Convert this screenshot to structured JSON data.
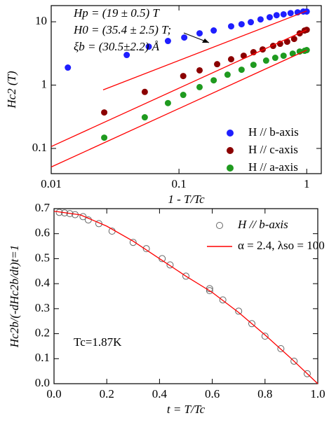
{
  "chart_data": [
    {
      "type": "scatter",
      "x_label": "1 - T/Tc",
      "y_label": "Hc2 (T)",
      "log_x": true,
      "log_y": true,
      "xlim": [
        0.01,
        1.3
      ],
      "ylim": [
        0.04,
        18
      ],
      "xticks": [
        0.01,
        0.1,
        1
      ],
      "yticks": [
        0.1,
        1,
        10
      ],
      "legend": "lower right",
      "annotations": [
        "Hp = (19 ± 0.5) T",
        "H0 = (35.4 ± 2.5) T;",
        "ξb = (30.5±2.2) Å"
      ],
      "series": [
        {
          "name": "H // b-axis",
          "color": "#1f1fff",
          "marker": "circle",
          "x": [
            0.0135,
            0.039,
            0.058,
            0.082,
            0.11,
            0.145,
            0.187,
            0.256,
            0.309,
            0.365,
            0.435,
            0.513,
            0.581,
            0.659,
            0.748,
            0.849,
            0.94,
            1.0
          ],
          "values": [
            1.89,
            2.99,
            4.05,
            4.97,
            5.64,
            6.57,
            7.28,
            8.47,
            9.15,
            9.86,
            10.9,
            11.8,
            12.7,
            13.1,
            13.7,
            14.1,
            14.5,
            14.5
          ]
        },
        {
          "name": "H // c-axis",
          "color": "#8b0000",
          "marker": "circle",
          "x": [
            0.026,
            0.054,
            0.108,
            0.145,
            0.199,
            0.256,
            0.321,
            0.383,
            0.452,
            0.546,
            0.619,
            0.703,
            0.797,
            0.881,
            0.963,
            1.0
          ],
          "values": [
            0.37,
            0.78,
            1.39,
            1.71,
            2.14,
            2.56,
            2.91,
            3.31,
            3.66,
            4.16,
            4.49,
            4.84,
            5.36,
            6.57,
            7.27,
            7.46
          ]
        },
        {
          "name": "H // a-axis",
          "color": "#1f9a1f",
          "marker": "circle",
          "x": [
            0.026,
            0.054,
            0.082,
            0.108,
            0.145,
            0.187,
            0.24,
            0.309,
            0.383,
            0.481,
            0.567,
            0.659,
            0.777,
            0.881,
            0.963,
            1.0
          ],
          "values": [
            0.148,
            0.31,
            0.52,
            0.7,
            0.93,
            1.19,
            1.46,
            1.75,
            2.09,
            2.44,
            2.7,
            2.91,
            3.14,
            3.39,
            3.48,
            3.57
          ]
        },
        {
          "type": "line",
          "color": "#ff0000",
          "x": [
            0.0255,
            1
          ],
          "values": [
            0.84,
            14.8
          ]
        },
        {
          "type": "line",
          "color": "#ff0000",
          "x": [
            0.01,
            1
          ],
          "values": [
            0.107,
            7.46
          ]
        },
        {
          "type": "line",
          "color": "#ff0000",
          "x": [
            0.01,
            1
          ],
          "values": [
            0.051,
            3.57
          ]
        }
      ]
    },
    {
      "type": "scatter",
      "x_label": "t = T/Tc",
      "y_label": "Hc2b/(-dHc2b/dt)t=1",
      "xlim": [
        0,
        1.0
      ],
      "ylim": [
        0,
        0.7
      ],
      "xticks": [
        {
          "value": 0,
          "label": "0.0"
        },
        0.2,
        0.4,
        0.6,
        0.8,
        {
          "value": 1,
          "label": "1.0"
        }
      ],
      "yticks": [
        {
          "value": 0,
          "label": "0.0"
        },
        0.1,
        0.2,
        0.3,
        0.4,
        0.5,
        0.6,
        0.7
      ],
      "legend": "upper right",
      "annotations": [
        "Tc=1.87K"
      ],
      "series": [
        {
          "name": "H // b-axis",
          "color": "#666666",
          "marker": "open-circle",
          "x": [
            0.02,
            0.04,
            0.06,
            0.08,
            0.11,
            0.13,
            0.17,
            0.22,
            0.3,
            0.35,
            0.41,
            0.44,
            0.5,
            0.59,
            0.59,
            0.64,
            0.7,
            0.75,
            0.8,
            0.86,
            0.91,
            0.96
          ],
          "values": [
            0.685,
            0.683,
            0.68,
            0.676,
            0.668,
            0.655,
            0.64,
            0.61,
            0.565,
            0.54,
            0.5,
            0.475,
            0.43,
            0.38,
            0.372,
            0.335,
            0.29,
            0.24,
            0.19,
            0.14,
            0.09,
            0.04
          ]
        },
        {
          "name": "α = 2.4, λso = 100",
          "type": "line",
          "color": "#ff0000",
          "x": [
            0,
            0.1,
            0.2,
            0.3,
            0.4,
            0.5,
            0.6,
            0.7,
            0.8,
            0.9,
            1.0
          ],
          "values": [
            0.69,
            0.675,
            0.63,
            0.57,
            0.5,
            0.43,
            0.365,
            0.285,
            0.195,
            0.1,
            0
          ]
        }
      ]
    }
  ]
}
